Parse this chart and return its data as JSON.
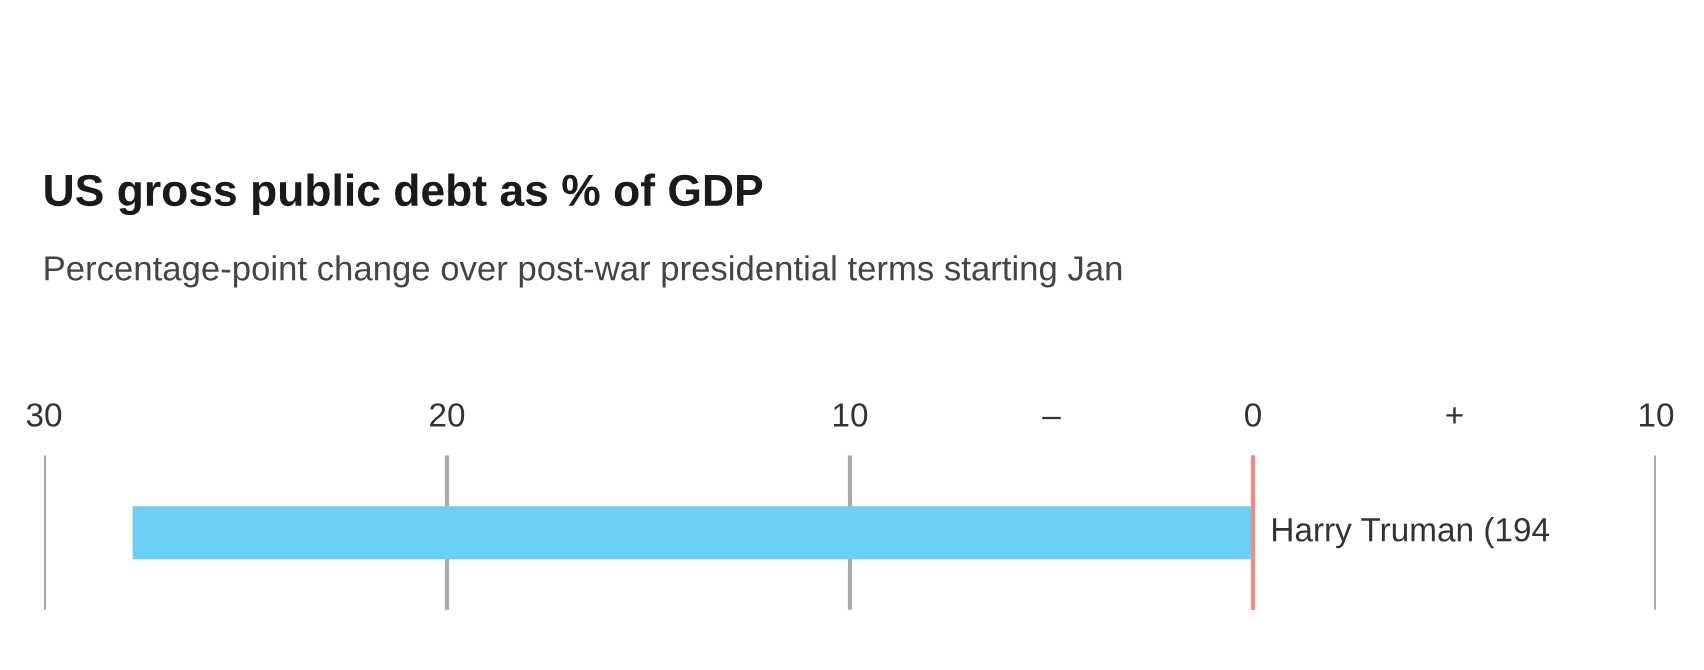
{
  "chart_data": {
    "type": "bar",
    "orientation": "horizontal",
    "title": "US gross public debt as % of GDP",
    "subtitle": "Percentage-point change over post-war presidential terms starting Jan",
    "categories": [
      "Harry Truman (194"
    ],
    "series": [
      {
        "color": "#6ccff6",
        "values": [
          -27.8
        ]
      }
    ],
    "xlim": [
      -30,
      10
    ],
    "xticks": [
      {
        "value": -30,
        "label": "30"
      },
      {
        "value": -20,
        "label": "20"
      },
      {
        "value": -10,
        "label": "10"
      },
      0,
      {
        "value": 10,
        "label": "10"
      }
    ],
    "annotations": [
      "–",
      "+"
    ],
    "ref_lines": [
      {
        "axis": "x",
        "value": 0,
        "color": "#f28b82"
      }
    ],
    "grid": "x"
  }
}
